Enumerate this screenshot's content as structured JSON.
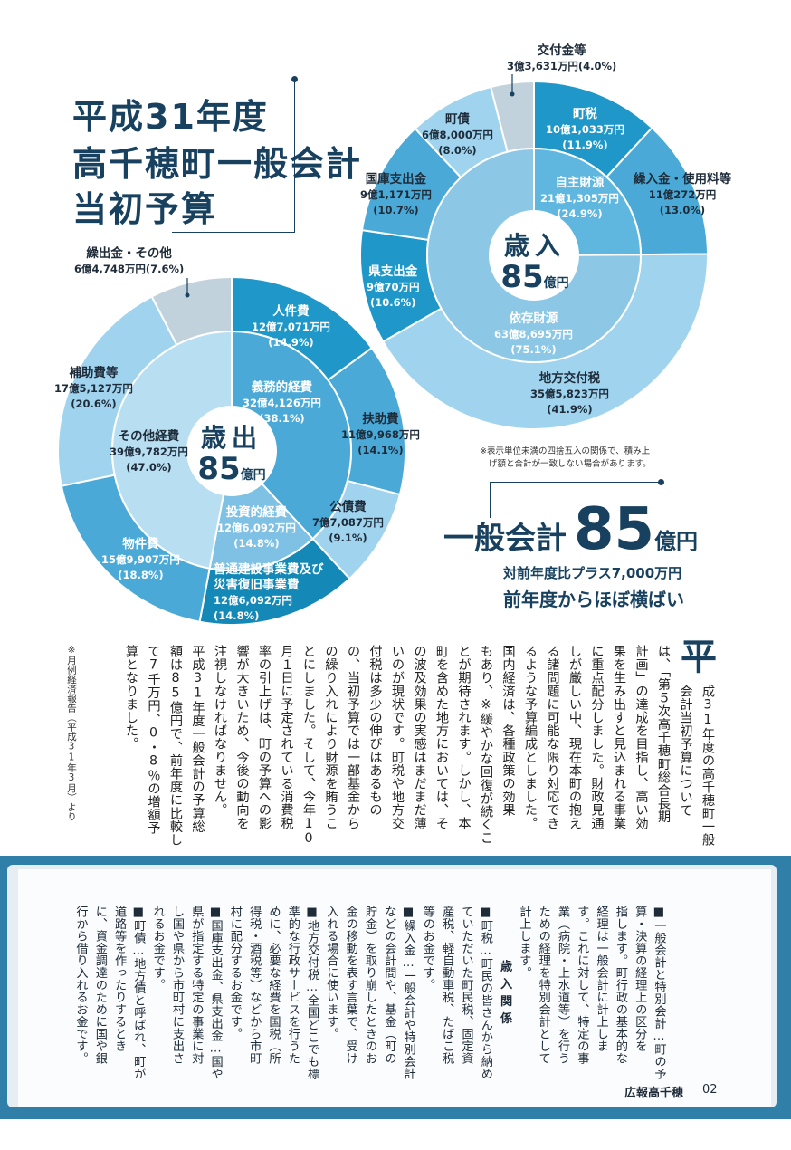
{
  "title": {
    "line1": "平成31年度",
    "line2": "高千穂町一般会計",
    "line3": "当初予算"
  },
  "revenue_chart": {
    "center_label": "歳入",
    "center_amount": "85",
    "center_unit": "億円",
    "inner": [
      {
        "name": "自主財源",
        "amount": "21億1,305万円",
        "pct": "(24.9%)",
        "value": 24.9
      },
      {
        "name": "依存財源",
        "amount": "63億8,695万円",
        "pct": "(75.1%)",
        "value": 75.1
      }
    ],
    "outer": [
      {
        "name": "町税",
        "amount": "10億1,033万円",
        "pct": "(11.9%)",
        "value": 11.9
      },
      {
        "name": "繰入金・使用料等",
        "amount": "11億272万円",
        "pct": "(13.0%)",
        "value": 13.0
      },
      {
        "name": "地方交付税",
        "amount": "35億5,823万円",
        "pct": "(41.9%)",
        "value": 41.9
      },
      {
        "name": "県支出金",
        "amount": "9億70万円",
        "pct": "(10.6%)",
        "value": 10.6
      },
      {
        "name": "国庫支出金",
        "amount": "9億1,171万円",
        "pct": "(10.7%)",
        "value": 10.7
      },
      {
        "name": "町債",
        "amount": "6億8,000万円",
        "pct": "(8.0%)",
        "value": 8.0
      },
      {
        "name": "交付金等",
        "amount": "3億3,631万円",
        "pct": "(4.0%)",
        "value": 4.0
      }
    ]
  },
  "expenditure_chart": {
    "center_label": "歳出",
    "center_amount": "85",
    "center_unit": "億円",
    "inner": [
      {
        "name": "義務的経費",
        "amount": "32億4,126万円",
        "pct": "(38.1%)",
        "value": 38.1
      },
      {
        "name": "投資的経費",
        "amount": "12億6,092万円",
        "pct": "(14.8%)",
        "value": 14.8
      },
      {
        "name": "その他経費",
        "amount": "39億9,782万円",
        "pct": "(47.0%)",
        "value": 47.0
      }
    ],
    "outer": [
      {
        "name": "人件費",
        "amount": "12億7,071万円",
        "pct": "(14.9%)",
        "value": 14.9
      },
      {
        "name": "扶助費",
        "amount": "11億9,968万円",
        "pct": "(14.1%)",
        "value": 14.1
      },
      {
        "name": "公債費",
        "amount": "7億7,087万円",
        "pct": "(9.1%)",
        "value": 9.1
      },
      {
        "name": "普通建設事業費及び災害復旧事業費",
        "name_l1": "普通建設事業費及び",
        "name_l2": "災害復旧事業費",
        "amount": "12億6,092万円",
        "pct": "(14.8%)",
        "value": 14.8
      },
      {
        "name": "物件費",
        "amount": "15億9,907万円",
        "pct": "(18.8%)",
        "value": 18.8
      },
      {
        "name": "補助費等",
        "amount": "17億5,127万円",
        "pct": "(20.6%)",
        "value": 20.6
      },
      {
        "name": "繰出金・その他",
        "amount": "6億4,748万円",
        "pct": "(7.6%)",
        "value": 7.6
      }
    ]
  },
  "rounding_note": {
    "line1": "※表示単位未満の四捨五入の関係で、積み上",
    "line2": "げ額と合計が一致しない場合があります。"
  },
  "headline": {
    "prefix": "一般会計",
    "amount": "85",
    "unit": "億円",
    "sub1": "対前年度比プラス7,000万円",
    "sub2": "前年度からほぼ横ばい"
  },
  "body": {
    "dropcap": "平",
    "col1": "成31年度の高千穂町一般",
    "col2": "会計当初予算について",
    "col3": "は、「第５次高千穂町総合長期",
    "col4": "計画」の達成を目指し、高い効",
    "col5": "果を生み出すと見込まれる事業",
    "col6": "に重点配分しました。財政見通",
    "col7": "しが厳しい中、現在本町の抱え",
    "col8": "る諸問題に可能な限り対応でき",
    "col9": "るような予算編成としました。",
    "col10": "国内経済は、各種政策の効果",
    "col11": "もあり、※緩やかな回復が続くこ",
    "col12": "とが期待されます。しかし、本",
    "col13": "町を含めた地方においては、そ",
    "col14": "の波及効果の実感はまだまだ薄",
    "col15": "いのが現状です。町税や地方交",
    "col16": "付税は多少の伸びはあるもの",
    "col17": "の、当初予算では一部基金から",
    "col18": "の繰り入れにより財源を賄うこ",
    "col19": "とにしました。そして、今年10",
    "col20": "月１日に予定されている消費税",
    "col21": "率の引上げは、町の予算への影",
    "col22": "響が大きいため、今後の動向を",
    "col23": "注視しなければなりません。",
    "col24": "平成31年度一般会計の予算総",
    "col25": "額は85億円で、前年度に比較し",
    "col26": "て7千万円、0・8％の増額予",
    "col27": "算となりました。",
    "footnote": "※月例経済報告（平成31年3月）より"
  },
  "glossary": {
    "g1": "■一般会計と特別会計…町の予",
    "g2": "算・決算の経理上の区分を",
    "g3": "指します。町行政の基本的な",
    "g4": "経理は一般会計に計上しま",
    "g5": "す。これに対して、特定の事",
    "g6": "業（病院・上水道等）を行う",
    "g7": "ための経理を特別会計として",
    "g8": "計上します。",
    "g9": "歳入関係",
    "g10": "■町税…町民の皆さんから納め",
    "g11": "ていただいた町民税、固定資",
    "g12": "産税、軽自動車税、たばこ税",
    "g13": "等のお金です。",
    "g14": "■繰入金…一般会計や特別会計",
    "g15": "などの会計間や、基金（町の",
    "g16": "貯金）を取り崩したときのお",
    "g17": "金の移動を表す言葉で、受け",
    "g18": "入れる場合に使います。",
    "g19": "■地方交付税…全国どこでも標",
    "g20": "準的な行政サービスを行うた",
    "g21": "めに、必要な経費を国税（所",
    "g22": "得税・酒税等）などから市町",
    "g23": "村に配分するお金です。",
    "g24": "■国庫支出金、県支出金…国や",
    "g25": "県が指定する特定の事業に対",
    "g26": "し国や県から市町村に支出さ",
    "g27": "れるお金です。",
    "g28": "■町債…地方債と呼ばれ、町が",
    "g29": "道路等を作ったりするとき",
    "g30": "に、資金調達のために国や銀",
    "g31": "行から借り入れるお金です。"
  },
  "footer": {
    "label": "広報高千穂",
    "page": "02"
  },
  "colors": {
    "dark_blue": "#17415f",
    "teal": "#1f98c9",
    "medium_blue": "#4aa9d6",
    "light_blue": "#9fd3ee",
    "pale_gray": "#c2d2dc"
  }
}
